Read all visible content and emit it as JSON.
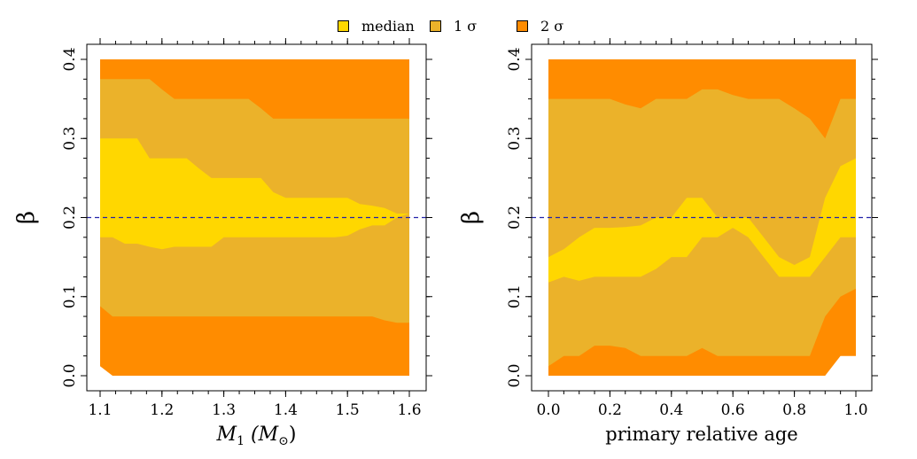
{
  "legend": {
    "items": [
      {
        "label": "median",
        "color": "#FFD700"
      },
      {
        "label": "1 σ",
        "color": "#EBB22A"
      },
      {
        "label": "2 σ",
        "color": "#FF8C00"
      }
    ]
  },
  "chart_data": [
    {
      "type": "area",
      "xlabel_main": "M",
      "xlabel_sub": "1",
      "xlabel_unit": "(M",
      "xlabel_unit_sub": "⊙",
      "xlabel_close": ")",
      "ylabel": "β",
      "xlim": [
        1.1,
        1.6
      ],
      "ylim": [
        0.0,
        0.4
      ],
      "xticks": [
        1.1,
        1.2,
        1.3,
        1.4,
        1.5,
        1.6
      ],
      "xtick_labels": [
        "1.1",
        "1.2",
        "1.3",
        "1.4",
        "1.5",
        "1.6"
      ],
      "yticks": [
        0.0,
        0.1,
        0.2,
        0.3,
        0.4
      ],
      "ytick_labels": [
        "0.0",
        "0.1",
        "0.2",
        "0.3",
        "0.4"
      ],
      "reference_line": {
        "y": 0.2,
        "style": "dashed",
        "color": "#2222AA"
      },
      "x": [
        1.1,
        1.12,
        1.14,
        1.16,
        1.18,
        1.2,
        1.22,
        1.24,
        1.26,
        1.28,
        1.3,
        1.32,
        1.34,
        1.36,
        1.38,
        1.4,
        1.42,
        1.44,
        1.46,
        1.48,
        1.5,
        1.52,
        1.54,
        1.56,
        1.58,
        1.6
      ],
      "bands": [
        {
          "name": "2 σ",
          "color": "#FF8C00",
          "lower": [
            0.012,
            0.0,
            0.0,
            0.0,
            0.0,
            0.0,
            0.0,
            0.0,
            0.0,
            0.0,
            0.0,
            0.0,
            0.0,
            0.0,
            0.0,
            0.0,
            0.0,
            0.0,
            0.0,
            0.0,
            0.0,
            0.0,
            0.0,
            0.0,
            0.0,
            0.0
          ],
          "upper": [
            0.4,
            0.4,
            0.4,
            0.4,
            0.4,
            0.4,
            0.4,
            0.4,
            0.4,
            0.4,
            0.4,
            0.4,
            0.4,
            0.4,
            0.4,
            0.4,
            0.4,
            0.4,
            0.4,
            0.4,
            0.4,
            0.4,
            0.4,
            0.4,
            0.4,
            0.4
          ]
        },
        {
          "name": "1 σ",
          "color": "#EBB22A",
          "lower": [
            0.088,
            0.075,
            0.075,
            0.075,
            0.075,
            0.075,
            0.075,
            0.075,
            0.075,
            0.075,
            0.075,
            0.075,
            0.075,
            0.075,
            0.075,
            0.075,
            0.075,
            0.075,
            0.075,
            0.075,
            0.075,
            0.075,
            0.075,
            0.07,
            0.067,
            0.067
          ],
          "upper": [
            0.375,
            0.375,
            0.375,
            0.375,
            0.375,
            0.362,
            0.35,
            0.35,
            0.35,
            0.35,
            0.35,
            0.35,
            0.35,
            0.338,
            0.325,
            0.325,
            0.325,
            0.325,
            0.325,
            0.325,
            0.325,
            0.325,
            0.325,
            0.325,
            0.325,
            0.325
          ]
        },
        {
          "name": "median",
          "color": "#FFD700",
          "lower": [
            0.175,
            0.175,
            0.167,
            0.167,
            0.163,
            0.16,
            0.163,
            0.163,
            0.163,
            0.163,
            0.175,
            0.175,
            0.175,
            0.175,
            0.175,
            0.175,
            0.175,
            0.175,
            0.175,
            0.175,
            0.177,
            0.185,
            0.19,
            0.19,
            0.2,
            0.205
          ],
          "upper": [
            0.3,
            0.3,
            0.3,
            0.3,
            0.275,
            0.275,
            0.275,
            0.275,
            0.262,
            0.25,
            0.25,
            0.25,
            0.25,
            0.25,
            0.232,
            0.225,
            0.225,
            0.225,
            0.225,
            0.225,
            0.225,
            0.217,
            0.215,
            0.212,
            0.205,
            0.205
          ]
        }
      ]
    },
    {
      "type": "area",
      "xlabel": "primary relative age",
      "ylabel": "β",
      "xlim": [
        0.0,
        1.0
      ],
      "ylim": [
        0.0,
        0.4
      ],
      "xticks": [
        0.0,
        0.2,
        0.4,
        0.6,
        0.8,
        1.0
      ],
      "xtick_labels": [
        "0.0",
        "0.2",
        "0.4",
        "0.6",
        "0.8",
        "1.0"
      ],
      "yticks": [
        0.0,
        0.1,
        0.2,
        0.3,
        0.4
      ],
      "ytick_labels": [
        "0.0",
        "0.1",
        "0.2",
        "0.3",
        "0.4"
      ],
      "reference_line": {
        "y": 0.2,
        "style": "dashed",
        "color": "#2222AA"
      },
      "x": [
        0.0,
        0.05,
        0.1,
        0.15,
        0.2,
        0.25,
        0.3,
        0.35,
        0.4,
        0.45,
        0.5,
        0.55,
        0.6,
        0.65,
        0.7,
        0.75,
        0.8,
        0.85,
        0.9,
        0.95,
        1.0
      ],
      "bands": [
        {
          "name": "2 σ",
          "color": "#FF8C00",
          "lower": [
            0.0,
            0.0,
            0.0,
            0.0,
            0.0,
            0.0,
            0.0,
            0.0,
            0.0,
            0.0,
            0.0,
            0.0,
            0.0,
            0.0,
            0.0,
            0.0,
            0.0,
            0.0,
            0.0,
            0.025,
            0.025
          ],
          "upper": [
            0.4,
            0.4,
            0.4,
            0.4,
            0.4,
            0.4,
            0.4,
            0.4,
            0.4,
            0.4,
            0.4,
            0.4,
            0.4,
            0.4,
            0.4,
            0.4,
            0.4,
            0.4,
            0.4,
            0.4,
            0.4
          ]
        },
        {
          "name": "1 σ",
          "color": "#EBB22A",
          "lower": [
            0.012,
            0.025,
            0.025,
            0.038,
            0.038,
            0.035,
            0.025,
            0.025,
            0.025,
            0.025,
            0.035,
            0.025,
            0.025,
            0.025,
            0.025,
            0.025,
            0.025,
            0.025,
            0.075,
            0.1,
            0.11
          ],
          "upper": [
            0.35,
            0.35,
            0.35,
            0.35,
            0.35,
            0.343,
            0.338,
            0.35,
            0.35,
            0.35,
            0.362,
            0.362,
            0.355,
            0.35,
            0.35,
            0.35,
            0.338,
            0.325,
            0.3,
            0.35,
            0.35
          ]
        },
        {
          "name": "median",
          "color": "#FFD700",
          "lower": [
            0.118,
            0.125,
            0.12,
            0.125,
            0.125,
            0.125,
            0.125,
            0.135,
            0.15,
            0.15,
            0.175,
            0.175,
            0.187,
            0.175,
            0.15,
            0.125,
            0.125,
            0.125,
            0.15,
            0.175,
            0.175
          ],
          "upper": [
            0.15,
            0.16,
            0.175,
            0.187,
            0.187,
            0.188,
            0.19,
            0.2,
            0.2,
            0.225,
            0.225,
            0.2,
            0.2,
            0.2,
            0.175,
            0.15,
            0.14,
            0.15,
            0.225,
            0.265,
            0.275
          ]
        }
      ]
    }
  ]
}
